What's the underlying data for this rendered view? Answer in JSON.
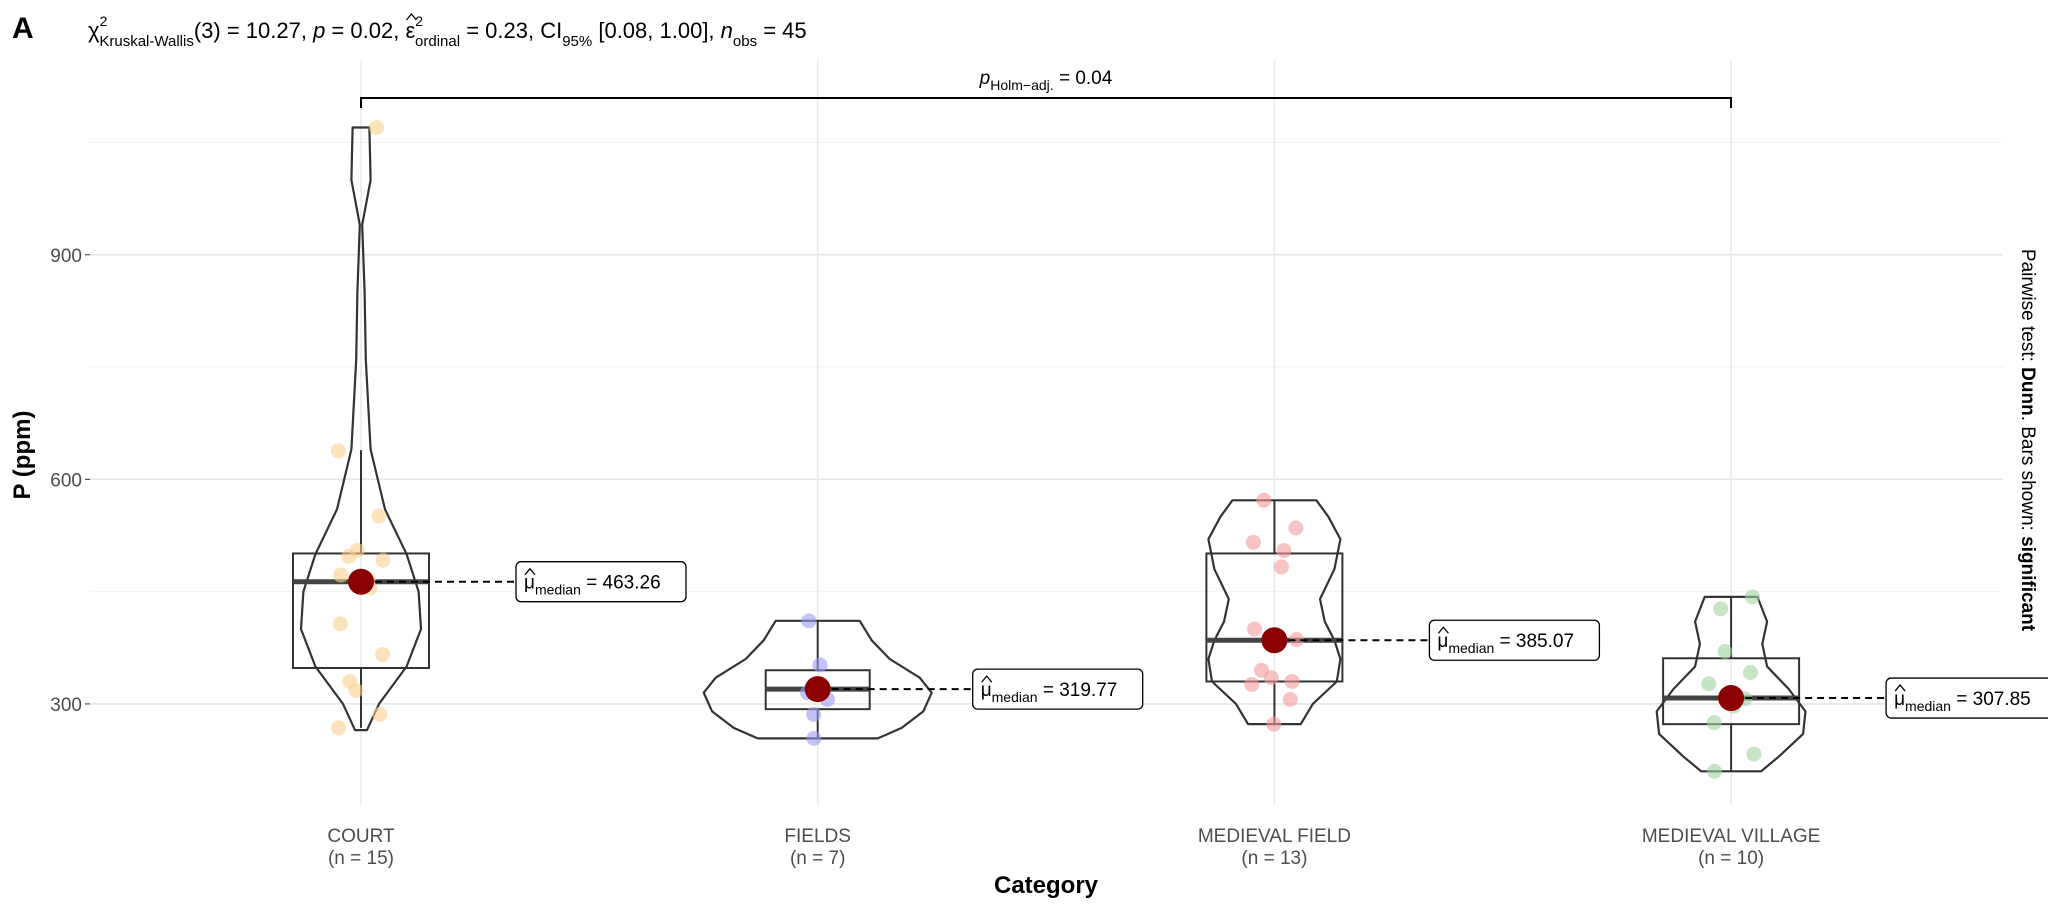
{
  "panel_tag": "A",
  "subtitle": {
    "chi": "χ",
    "chi_sup": "2",
    "chi_sub": "Kruskal-Wallis",
    "df_and_stat": "(3) = 10.27, ",
    "p_symbol": "p",
    "p_value": " = 0.02, ",
    "eps": "ε",
    "eps_sup": "2",
    "eps_sub": "ordinal",
    "eps_value": " = 0.23, CI",
    "ci_sub": "95%",
    "ci_value": " [0.08, 1.00], ",
    "n_symbol": "n",
    "n_sub": "obs",
    "n_value": " = 45"
  },
  "caption": {
    "prefix": "Pairwise test: ",
    "test": "Dunn",
    "middle": ". Bars shown: ",
    "shown": "significant"
  },
  "colors": {
    "court": "#fcd18f",
    "fields": "#9b9bf0",
    "medieval_field": "#f59b9b",
    "medieval_village": "#9fd39f",
    "median_point": "#8b0000",
    "grid": "#ebebeb",
    "outline": "#333333"
  },
  "chart_data": {
    "type": "violin-box",
    "xlabel": "Category",
    "ylabel": "P (ppm)",
    "ylim": [
      165,
      1080
    ],
    "yticks": [
      300,
      600,
      900
    ],
    "grid": true,
    "categories": [
      {
        "name": "COURT",
        "n_label": "(n = 15)",
        "color_key": "court",
        "median": 463.26,
        "median_label": "463.26",
        "box": {
          "q1": 348,
          "q3": 501,
          "whisker_low": 268,
          "whisker_high": 639
        },
        "violin": {
          "min": 265,
          "max": 1070,
          "profile": [
            [
              265,
              0.05
            ],
            [
              300,
              0.15
            ],
            [
              350,
              0.38
            ],
            [
              400,
              0.5
            ],
            [
              450,
              0.48
            ],
            [
              500,
              0.38
            ],
            [
              560,
              0.2
            ],
            [
              640,
              0.08
            ],
            [
              760,
              0.04
            ],
            [
              850,
              0.03
            ],
            [
              940,
              0.01
            ],
            [
              1000,
              0.08
            ],
            [
              1070,
              0.07
            ]
          ]
        },
        "points": [
          1070,
          638,
          551,
          505,
          497,
          492,
          472,
          466,
          455,
          407,
          366,
          330,
          318,
          286,
          268
        ]
      },
      {
        "name": "FIELDS",
        "n_label": "(n = 7)",
        "color_key": "fields",
        "median": 319.77,
        "median_label": "319.77",
        "box": {
          "q1": 293,
          "q3": 345,
          "whisker_low": 254,
          "whisker_high": 411
        },
        "violin": {
          "min": 254,
          "max": 411,
          "profile": [
            [
              254,
              0.5
            ],
            [
              268,
              0.7
            ],
            [
              290,
              0.88
            ],
            [
              315,
              0.95
            ],
            [
              335,
              0.85
            ],
            [
              360,
              0.6
            ],
            [
              385,
              0.45
            ],
            [
              411,
              0.35
            ]
          ]
        },
        "points": [
          411,
          352,
          320,
          315,
          306,
          286,
          254
        ]
      },
      {
        "name": "MEDIEVAL FIELD",
        "n_label": "(n = 13)",
        "color_key": "medieval_field",
        "median": 385.07,
        "median_label": "385.07",
        "box": {
          "q1": 330,
          "q3": 501,
          "whisker_low": 273,
          "whisker_high": 572
        },
        "violin": {
          "min": 273,
          "max": 572,
          "profile": [
            [
              273,
              0.22
            ],
            [
              300,
              0.32
            ],
            [
              330,
              0.52
            ],
            [
              360,
              0.55
            ],
            [
              385,
              0.5
            ],
            [
              410,
              0.42
            ],
            [
              440,
              0.38
            ],
            [
              480,
              0.5
            ],
            [
              520,
              0.55
            ],
            [
              550,
              0.45
            ],
            [
              572,
              0.35
            ]
          ]
        },
        "points": [
          572,
          535,
          516,
          505,
          483,
          400,
          386,
          345,
          335,
          330,
          326,
          306,
          273
        ]
      },
      {
        "name": "MEDIEVAL VILLAGE",
        "n_label": "(n = 10)",
        "color_key": "medieval_village",
        "median": 307.85,
        "median_label": "307.85",
        "box": {
          "q1": 273,
          "q3": 361,
          "whisker_low": 210,
          "whisker_high": 443
        },
        "violin": {
          "min": 210,
          "max": 443,
          "profile": [
            [
              210,
              0.25
            ],
            [
              230,
              0.4
            ],
            [
              260,
              0.6
            ],
            [
              290,
              0.62
            ],
            [
              320,
              0.48
            ],
            [
              350,
              0.3
            ],
            [
              380,
              0.26
            ],
            [
              410,
              0.3
            ],
            [
              443,
              0.22
            ]
          ]
        },
        "points": [
          443,
          427,
          370,
          342,
          327,
          307,
          297,
          275,
          233,
          210
        ]
      }
    ],
    "pairwise": {
      "from": "COURT",
      "to": "MEDIEVAL VILLAGE",
      "p_symbol": "p",
      "p_sub": "Holm−adj.",
      "p_value": " = 0.04"
    },
    "median_prefix": "μ",
    "median_sub": "median",
    "median_eq": " = "
  }
}
